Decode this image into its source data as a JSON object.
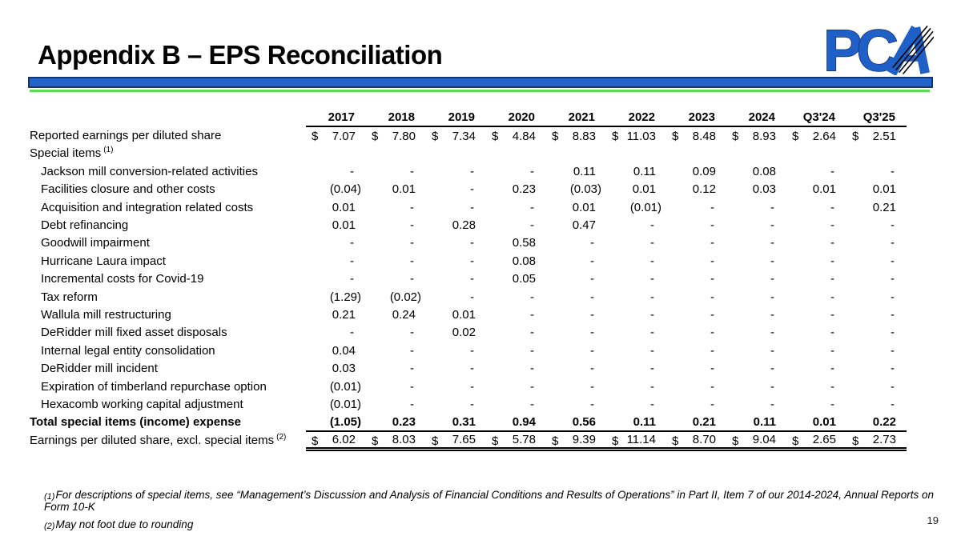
{
  "slide": {
    "title": "Appendix B – EPS Reconciliation",
    "page_number": "19"
  },
  "colors": {
    "bar_blue": "#2264C8",
    "bar_border": "#14356E",
    "accent_green": "#55DD4E",
    "logo_blue": "#1E60C8",
    "logo_outline": "#0F2F66"
  },
  "logo": {
    "name": "PCA",
    "letters": [
      "P",
      "C"
    ]
  },
  "table": {
    "currency_symbol": "$",
    "columns": [
      "2017",
      "2018",
      "2019",
      "2020",
      "2021",
      "2022",
      "2023",
      "2024",
      "Q3'24",
      "Q3'25"
    ],
    "rows": [
      {
        "label": "Reported earnings per diluted share",
        "dollar": true,
        "values": [
          "7.07",
          "7.80",
          "7.34",
          "4.84",
          "8.83",
          "11.03",
          "8.48",
          "8.93",
          "2.64",
          "2.51"
        ]
      },
      {
        "label": "Special items",
        "sup": "(1)",
        "values": []
      },
      {
        "label": "Jackson mill conversion-related activities",
        "indent": true,
        "values": [
          "-",
          "-",
          "-",
          "-",
          "0.11",
          "0.11",
          "0.09",
          "0.08",
          "-",
          "-"
        ]
      },
      {
        "label": "Facilities closure and other costs",
        "indent": true,
        "values": [
          "(0.04)",
          "0.01",
          "-",
          "0.23",
          "(0.03)",
          "0.01",
          "0.12",
          "0.03",
          "0.01",
          "0.01"
        ]
      },
      {
        "label": "Acquisition and integration related costs",
        "indent": true,
        "values": [
          "0.01",
          "-",
          "-",
          "-",
          "0.01",
          "(0.01)",
          "-",
          "-",
          "-",
          "0.21"
        ]
      },
      {
        "label": "Debt refinancing",
        "indent": true,
        "values": [
          "0.01",
          "-",
          "0.28",
          "-",
          "0.47",
          "-",
          "-",
          "-",
          "-",
          "-"
        ]
      },
      {
        "label": "Goodwill impairment",
        "indent": true,
        "values": [
          "-",
          "-",
          "-",
          "0.58",
          "-",
          "-",
          "-",
          "-",
          "-",
          "-"
        ]
      },
      {
        "label": "Hurricane Laura impact",
        "indent": true,
        "values": [
          "-",
          "-",
          "-",
          "0.08",
          "-",
          "-",
          "-",
          "-",
          "-",
          "-"
        ]
      },
      {
        "label": "Incremental costs for Covid-19",
        "indent": true,
        "values": [
          "-",
          "-",
          "-",
          "0.05",
          "-",
          "-",
          "-",
          "-",
          "-",
          "-"
        ]
      },
      {
        "label": "Tax reform",
        "indent": true,
        "values": [
          "(1.29)",
          "(0.02)",
          "-",
          "-",
          "-",
          "-",
          "-",
          "-",
          "-",
          "-"
        ]
      },
      {
        "label": "Wallula mill restructuring",
        "indent": true,
        "values": [
          "0.21",
          "0.24",
          "0.01",
          "-",
          "-",
          "-",
          "-",
          "-",
          "-",
          "-"
        ]
      },
      {
        "label": "DeRidder mill fixed asset disposals",
        "indent": true,
        "values": [
          "-",
          "-",
          "0.02",
          "-",
          "-",
          "-",
          "-",
          "-",
          "-",
          "-"
        ]
      },
      {
        "label": "Internal legal entity consolidation",
        "indent": true,
        "values": [
          "0.04",
          "-",
          "-",
          "-",
          "-",
          "-",
          "-",
          "-",
          "-",
          "-"
        ]
      },
      {
        "label": "DeRidder mill incident",
        "indent": true,
        "values": [
          "0.03",
          "-",
          "-",
          "-",
          "-",
          "-",
          "-",
          "-",
          "-",
          "-"
        ]
      },
      {
        "label": "Expiration of timberland repurchase option",
        "indent": true,
        "values": [
          "(0.01)",
          "-",
          "-",
          "-",
          "-",
          "-",
          "-",
          "-",
          "-",
          "-"
        ]
      },
      {
        "label": "Hexacomb working capital adjustment",
        "indent": true,
        "values": [
          "(0.01)",
          "-",
          "-",
          "-",
          "-",
          "-",
          "-",
          "-",
          "-",
          "-"
        ]
      },
      {
        "label": "Total special items (income) expense",
        "bold": true,
        "underline": true,
        "values": [
          "(1.05)",
          "0.23",
          "0.31",
          "0.94",
          "0.56",
          "0.11",
          "0.21",
          "0.11",
          "0.01",
          "0.22"
        ]
      },
      {
        "label": "Earnings per diluted share, excl. special items",
        "sup": "(2)",
        "dollar": true,
        "double_underline": true,
        "values": [
          "6.02",
          "8.03",
          "7.65",
          "5.78",
          "9.39",
          "11.14",
          "8.70",
          "9.04",
          "2.65",
          "2.73"
        ]
      }
    ]
  },
  "footnotes": [
    {
      "marker": "(1)",
      "text": "For descriptions of special items, see “Management’s Discussion and Analysis of Financial Conditions and Results of Operations” in Part II, Item 7 of our 2014-2024, Annual Reports on Form 10-K"
    },
    {
      "marker": "(2)",
      "text": "May not foot due to rounding"
    }
  ]
}
